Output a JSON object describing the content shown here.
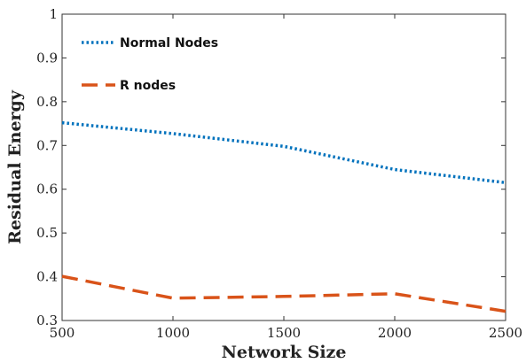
{
  "chart_data": {
    "type": "line",
    "x": [
      500,
      1000,
      1500,
      2000,
      2500
    ],
    "series": [
      {
        "name": "Normal Nodes",
        "values": [
          0.752,
          0.727,
          0.698,
          0.645,
          0.615
        ],
        "color": "#0072BD",
        "style": "dotted"
      },
      {
        "name": "R nodes",
        "values": [
          0.401,
          0.351,
          0.355,
          0.361,
          0.321
        ],
        "color": "#D95319",
        "style": "dashed"
      }
    ],
    "xlabel": "Network Size",
    "ylabel": "Residual Energy",
    "xlim": [
      500,
      2500
    ],
    "ylim": [
      0.3,
      1
    ],
    "xticks": [
      "500",
      "1000",
      "1500",
      "2000",
      "2500"
    ],
    "yticks": [
      "0.3",
      "0.4",
      "0.5",
      "0.6",
      "0.7",
      "0.8",
      "0.9",
      "1"
    ],
    "grid": false,
    "legend_position": "top-left"
  }
}
